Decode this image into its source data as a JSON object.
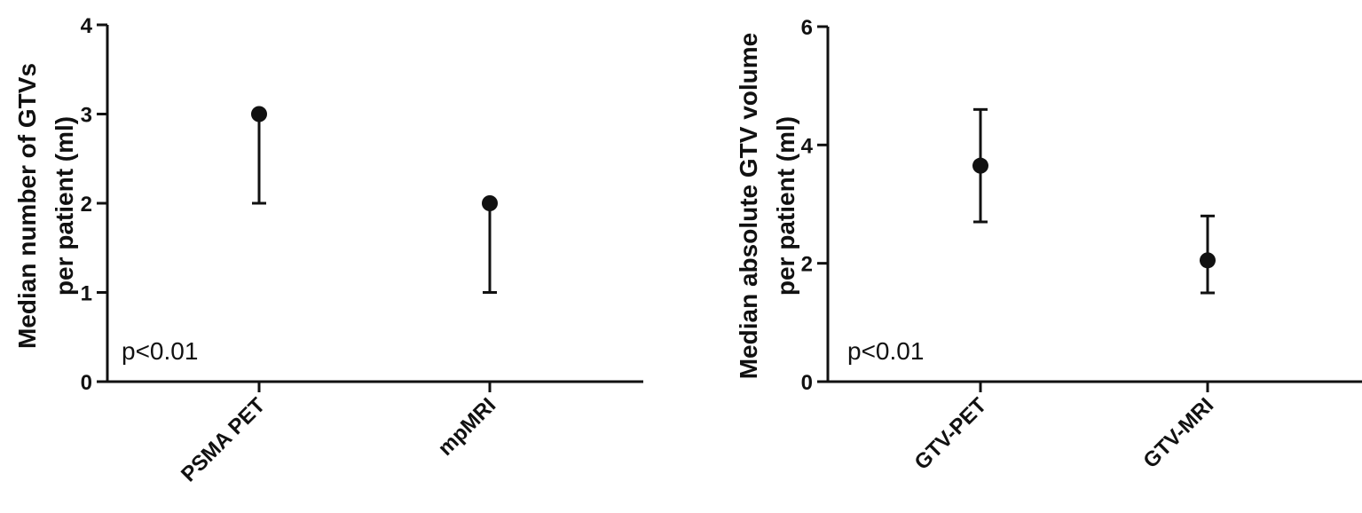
{
  "chart_data": [
    {
      "type": "scatter",
      "title": "",
      "ylabel_lines": [
        "Median  number of GTVs",
        "per patient (ml)"
      ],
      "xlabel": "",
      "categories": [
        "PSMA PET",
        "mpMRI"
      ],
      "points": [
        {
          "category": "PSMA PET",
          "median": 3,
          "lower": 2,
          "upper": 3
        },
        {
          "category": "mpMRI",
          "median": 2,
          "lower": 1,
          "upper": 2
        }
      ],
      "ylim": [
        0,
        4
      ],
      "yticks": [
        0,
        1,
        2,
        3,
        4
      ],
      "annotation": "p<0.01"
    },
    {
      "type": "scatter",
      "title": "",
      "ylabel_lines": [
        "Median  absolute GTV volume",
        "per patient (ml)"
      ],
      "xlabel": "",
      "categories": [
        "GTV-PET",
        "GTV-MRI"
      ],
      "points": [
        {
          "category": "GTV-PET",
          "median": 3.65,
          "lower": 2.7,
          "upper": 4.6
        },
        {
          "category": "GTV-MRI",
          "median": 2.05,
          "lower": 1.5,
          "upper": 2.8
        }
      ],
      "ylim": [
        0,
        6
      ],
      "yticks": [
        0,
        2,
        4,
        6
      ],
      "annotation": "p<0.01"
    }
  ],
  "colors": {
    "ink": "#111111",
    "background": "#ffffff"
  }
}
